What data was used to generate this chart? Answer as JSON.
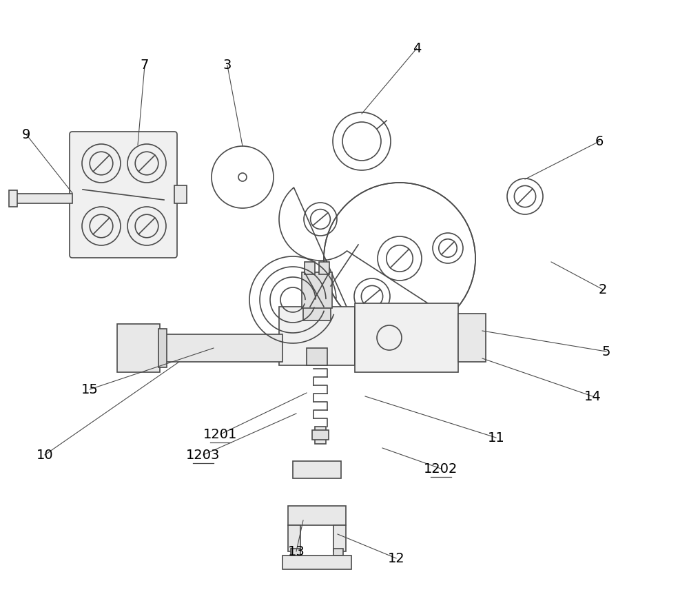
{
  "bg_color": "#ffffff",
  "line_color": "#4a4a4a",
  "label_color": "#000000",
  "fig_width": 10.0,
  "fig_height": 8.72,
  "dpi": 100
}
